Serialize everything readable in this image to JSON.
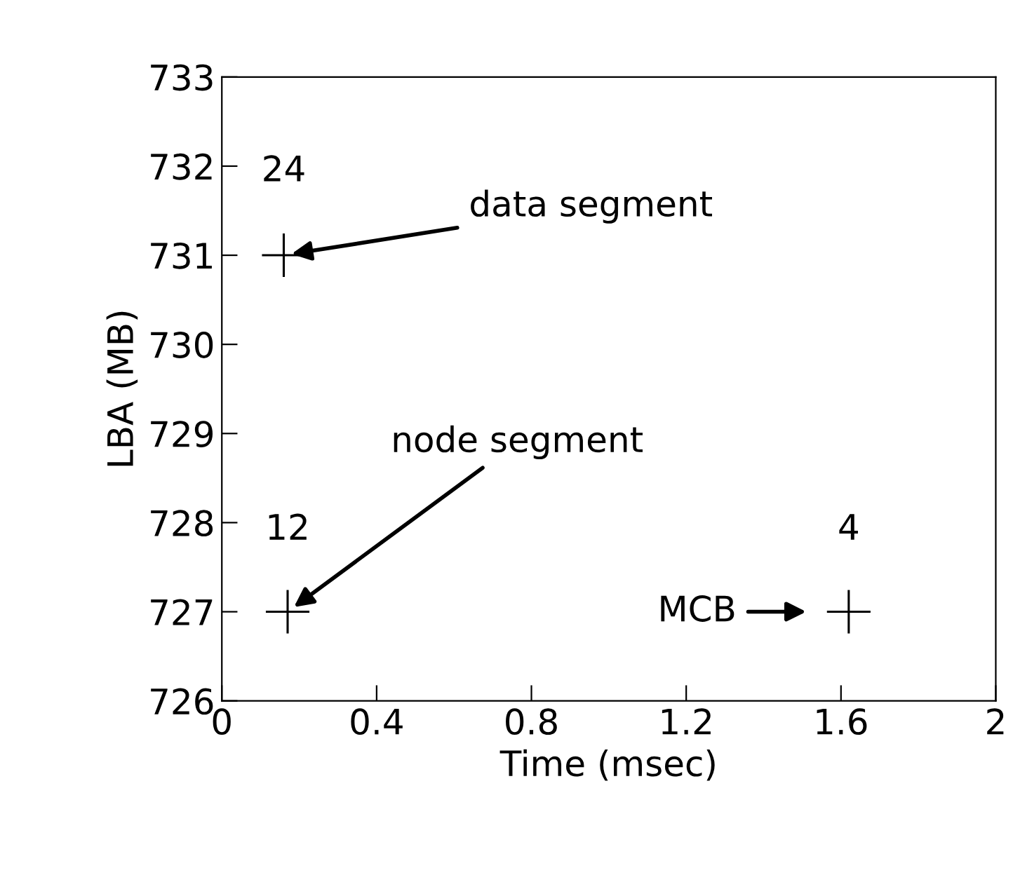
{
  "chart_data": {
    "type": "scatter",
    "xlabel": "Time (msec)",
    "ylabel": "LBA (MB)",
    "x": [
      0.16,
      0.17,
      1.62
    ],
    "values": [
      731,
      727,
      727
    ],
    "color": "#000000",
    "marker": "cross",
    "xlim": [
      0,
      2
    ],
    "ylim": [
      726,
      733
    ],
    "xticks": [
      0,
      0.4,
      0.8,
      1.2,
      1.6,
      2
    ],
    "yticks": [
      726,
      727,
      728,
      729,
      730,
      731,
      732,
      733
    ],
    "grid": false,
    "legend": false,
    "annotations": [
      {
        "text": "24",
        "x": 0.16,
        "y": 731
      },
      {
        "text": "data segment",
        "x": 0.16,
        "y": 731
      },
      {
        "text": "12",
        "x": 0.17,
        "y": 727
      },
      {
        "text": "node segment",
        "x": 0.17,
        "y": 727
      },
      {
        "text": "4",
        "x": 1.62,
        "y": 727
      },
      "MCB"
    ]
  }
}
